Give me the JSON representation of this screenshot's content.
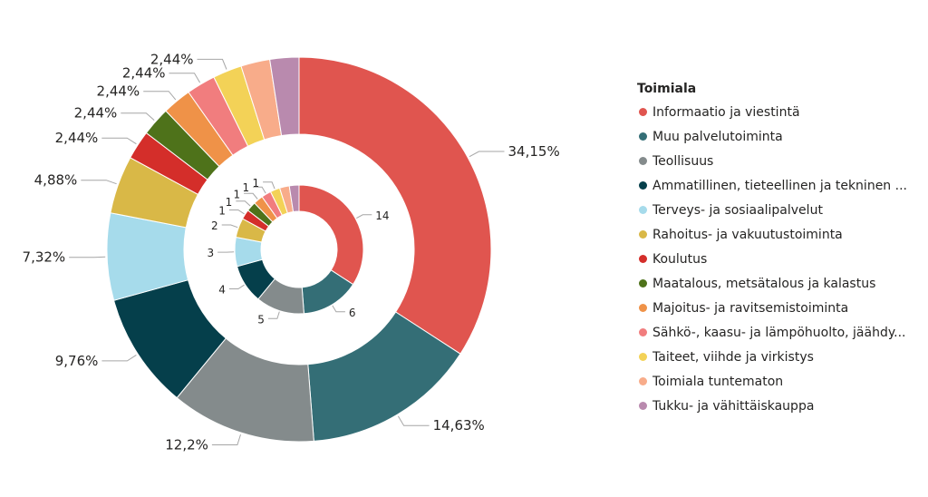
{
  "chart_data": {
    "type": "pie",
    "subtype": "nested-donut",
    "legend": {
      "title": "Toimiala",
      "placement": "right",
      "entries": [
        "Informaatio ja viestintä",
        "Muu palvelutoiminta",
        "Teollisuus",
        "Ammatillinen, tieteellinen ja tekninen ...",
        "Terveys- ja sosiaalipalvelut",
        "Rahoitus- ja vakuutustoiminta",
        "Koulutus",
        "Maatalous, metsätalous ja kalastus",
        "Majoitus- ja ravitsemistoiminta",
        "Sähkö-, kaasu- ja lämpöhuolto, jäähdy...",
        "Taiteet, viihde ja virkistys",
        "Toimiala tuntematon",
        "Tukku- ja vähittäiskauppa"
      ]
    },
    "colors": [
      "#e0554f",
      "#346e76",
      "#848b8c",
      "#053f4b",
      "#a6dbeb",
      "#d9b847",
      "#d42e2a",
      "#4e721a",
      "#ef9248",
      "#f17d7e",
      "#f3d257",
      "#f8ac8a",
      "#b98aae"
    ],
    "outer_ring": {
      "values": [
        34.15,
        14.63,
        12.2,
        9.76,
        7.32,
        4.88,
        2.44,
        2.44,
        2.44,
        2.44,
        2.44,
        2.44,
        2.44
      ],
      "labels": [
        "34,15%",
        "14,63%",
        "12,2%",
        "9,76%",
        "7,32%",
        "4,88%",
        "2,44%",
        "2,44%",
        "2,44%",
        "2,44%",
        "2,44%",
        "",
        ""
      ]
    },
    "inner_ring": {
      "values": [
        14,
        6,
        5,
        4,
        3,
        2,
        1,
        1,
        1,
        1,
        1,
        1,
        1
      ],
      "labels": [
        "14",
        "6",
        "5",
        "4",
        "3",
        "2",
        "1",
        "1",
        "1",
        "1",
        "1",
        "",
        ""
      ]
    }
  }
}
